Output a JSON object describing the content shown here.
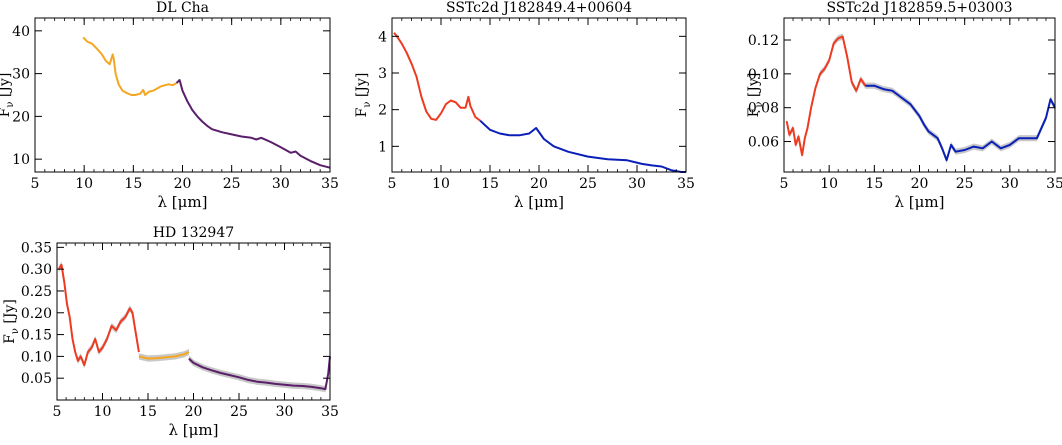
{
  "chart_data": [
    {
      "type": "line",
      "title": "DL Cha",
      "xlabel": "λ [μm]",
      "ylabel_main": "F",
      "ylabel_sub": "ν",
      "ylabel_unit": " [Jy]",
      "xlim": [
        5,
        35
      ],
      "ylim": [
        7,
        43
      ],
      "xticks": [
        5,
        10,
        15,
        20,
        25,
        30,
        35
      ],
      "yticks": [
        10,
        20,
        30,
        40
      ],
      "colors": {
        "orange": "#f5a623",
        "purple": "#5a1f6a"
      },
      "series": [
        {
          "color": "orange",
          "x": [
            9.9,
            10.3,
            10.8,
            11.3,
            11.8,
            12.2,
            12.6,
            12.9,
            13.0,
            13.2,
            13.5,
            13.9,
            14.3,
            14.8,
            15.2,
            15.7,
            16.0,
            16.2,
            16.6,
            17.0,
            17.4,
            17.8,
            18.2,
            18.6,
            19.0,
            19.4
          ],
          "y": [
            38.5,
            37.5,
            37.0,
            35.8,
            34.5,
            33.0,
            32.2,
            34.5,
            33.5,
            30.0,
            27.5,
            26.0,
            25.5,
            25.0,
            25.0,
            25.3,
            26.2,
            25.0,
            25.8,
            26.0,
            26.5,
            27.0,
            27.3,
            27.5,
            27.3,
            27.8
          ]
        },
        {
          "color": "purple",
          "x": [
            19.4,
            19.7,
            20.0,
            20.5,
            21.0,
            21.5,
            22.0,
            22.5,
            23.0,
            24.0,
            25.0,
            26.0,
            27.0,
            27.5,
            28.0,
            28.5,
            29.0,
            30.0,
            31.0,
            31.5,
            32.0,
            33.0,
            34.0,
            35.0
          ],
          "y": [
            27.8,
            28.5,
            26.0,
            23.5,
            21.5,
            20.0,
            18.8,
            17.8,
            17.0,
            16.3,
            15.8,
            15.3,
            15.0,
            14.6,
            15.0,
            14.5,
            14.0,
            12.8,
            11.5,
            11.8,
            10.8,
            9.6,
            8.6,
            8.0
          ]
        }
      ]
    },
    {
      "type": "line",
      "title": "SSTc2d J182849.4+00604",
      "xlabel": "λ [μm]",
      "ylabel_main": "F",
      "ylabel_sub": "ν",
      "ylabel_unit": " [Jy]",
      "xlim": [
        5,
        35
      ],
      "ylim": [
        0.3,
        4.5
      ],
      "xticks": [
        5,
        10,
        15,
        20,
        25,
        30,
        35
      ],
      "yticks": [
        1,
        2,
        3,
        4
      ],
      "colors": {
        "red": "#ee3a1f",
        "blue": "#0a1fb8"
      },
      "series": [
        {
          "color": "red",
          "x": [
            5.2,
            5.5,
            6.0,
            6.5,
            7.0,
            7.5,
            8.0,
            8.5,
            9.0,
            9.5,
            10.0,
            10.5,
            11.0,
            11.5,
            12.0,
            12.5,
            12.8,
            13.0,
            13.5,
            14.0
          ],
          "y": [
            4.1,
            4.0,
            3.8,
            3.55,
            3.25,
            2.9,
            2.35,
            1.95,
            1.75,
            1.72,
            1.9,
            2.15,
            2.25,
            2.2,
            2.05,
            2.05,
            2.35,
            2.1,
            1.8,
            1.7
          ]
        },
        {
          "color": "blue",
          "x": [
            14.0,
            15.0,
            16.0,
            17.0,
            18.0,
            19.0,
            19.7,
            20.5,
            21.5,
            23.0,
            25.0,
            27.0,
            29.0,
            30.5,
            31.5,
            32.5,
            33.5,
            34.5,
            35.0
          ],
          "y": [
            1.7,
            1.45,
            1.35,
            1.3,
            1.3,
            1.35,
            1.5,
            1.2,
            1.0,
            0.85,
            0.72,
            0.65,
            0.62,
            0.52,
            0.48,
            0.45,
            0.35,
            0.3,
            0.3
          ]
        }
      ]
    },
    {
      "type": "line",
      "title": "SSTc2d J182859.5+03003",
      "xlabel": "λ [μm]",
      "ylabel_main": "F",
      "ylabel_sub": "ν",
      "ylabel_unit": " [Jy]",
      "xlim": [
        5,
        35
      ],
      "ylim": [
        0.042,
        0.133
      ],
      "xticks": [
        5,
        10,
        15,
        20,
        25,
        30,
        35
      ],
      "yticks": [
        0.06,
        0.08,
        0.1,
        0.12
      ],
      "yticklabels": [
        "0.06",
        "0.08",
        "0.10",
        "0.12"
      ],
      "colors": {
        "red": "#ee3a1f",
        "blue": "#0a1fb8",
        "band": "#c8c8c8"
      },
      "series": [
        {
          "color": "red",
          "x": [
            5.3,
            5.6,
            6.0,
            6.3,
            6.6,
            7.0,
            7.3,
            7.6,
            8.0,
            8.5,
            9.0,
            9.5,
            10.0,
            10.5,
            11.0,
            11.5,
            12.0,
            12.5,
            13.0,
            13.5,
            14.0
          ],
          "y": [
            0.072,
            0.064,
            0.068,
            0.058,
            0.063,
            0.052,
            0.062,
            0.068,
            0.08,
            0.092,
            0.1,
            0.103,
            0.108,
            0.118,
            0.121,
            0.122,
            0.11,
            0.095,
            0.09,
            0.097,
            0.093
          ]
        },
        {
          "color": "blue",
          "x": [
            14.0,
            15.0,
            16.0,
            17.0,
            18.0,
            19.0,
            20.0,
            20.5,
            21.0,
            22.0,
            22.5,
            23.0,
            23.5,
            24.0,
            25.0,
            26.0,
            27.0,
            28.0,
            29.0,
            30.0,
            31.0,
            32.0,
            33.0,
            34.0,
            34.5,
            35.0
          ],
          "y": [
            0.093,
            0.093,
            0.091,
            0.09,
            0.086,
            0.082,
            0.075,
            0.07,
            0.066,
            0.062,
            0.056,
            0.049,
            0.058,
            0.054,
            0.055,
            0.057,
            0.056,
            0.06,
            0.056,
            0.058,
            0.062,
            0.062,
            0.062,
            0.074,
            0.085,
            0.08
          ]
        }
      ]
    },
    {
      "type": "line",
      "title": "HD 132947",
      "xlabel": "λ [μm]",
      "ylabel_main": "F",
      "ylabel_sub": "ν",
      "ylabel_unit": " [Jy]",
      "xlim": [
        5,
        35
      ],
      "ylim": [
        0.0,
        0.36
      ],
      "xticks": [
        5,
        10,
        15,
        20,
        25,
        30,
        35
      ],
      "yticks": [
        0.05,
        0.1,
        0.15,
        0.2,
        0.25,
        0.3,
        0.35
      ],
      "yticklabels": [
        "0.05",
        "0.10",
        "0.15",
        "0.20",
        "0.25",
        "0.30",
        "0.35"
      ],
      "colors": {
        "red": "#ee3a1f",
        "orange": "#f5a623",
        "purple": "#5a1f6a",
        "band": "#c8c8c8"
      },
      "series": [
        {
          "color": "red",
          "x": [
            5.2,
            5.5,
            5.8,
            6.1,
            6.4,
            6.7,
            7.0,
            7.3,
            7.6,
            8.0,
            8.4,
            8.8,
            9.2,
            9.6,
            10.0,
            10.5,
            11.0,
            11.5,
            12.0,
            12.5,
            13.0,
            13.3,
            13.6,
            14.0
          ],
          "y": [
            0.3,
            0.31,
            0.27,
            0.22,
            0.19,
            0.14,
            0.11,
            0.09,
            0.1,
            0.08,
            0.11,
            0.12,
            0.14,
            0.11,
            0.12,
            0.14,
            0.17,
            0.16,
            0.18,
            0.19,
            0.21,
            0.2,
            0.16,
            0.11
          ]
        },
        {
          "color": "orange",
          "x": [
            14.0,
            15.0,
            16.0,
            17.0,
            18.0,
            19.0,
            19.5
          ],
          "y": [
            0.1,
            0.095,
            0.096,
            0.098,
            0.1,
            0.105,
            0.11
          ]
        },
        {
          "color": "purple",
          "x": [
            19.5,
            20.0,
            21.0,
            22.0,
            23.0,
            24.0,
            25.0,
            26.0,
            27.0,
            28.0,
            29.0,
            30.0,
            31.0,
            32.0,
            33.0,
            34.0,
            34.5,
            34.8,
            35.0
          ],
          "y": [
            0.095,
            0.085,
            0.075,
            0.068,
            0.062,
            0.057,
            0.052,
            0.046,
            0.042,
            0.04,
            0.037,
            0.035,
            0.033,
            0.032,
            0.03,
            0.027,
            0.025,
            0.06,
            0.1
          ]
        }
      ]
    }
  ]
}
